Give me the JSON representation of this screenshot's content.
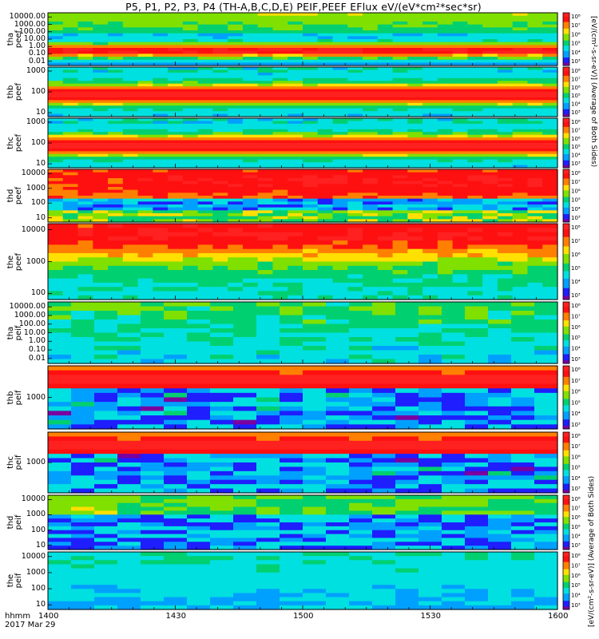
{
  "title": "P5, P1, P2, P3, P4 (TH-A,B,C,D,E) PEIF,PEEF EFlux eV/(eV*cm²*sec*sr)",
  "x_axis": {
    "row_label": "hhmm",
    "date_label": "2017 Mar 29",
    "ticks": [
      "1400",
      "1430",
      "1500",
      "1530",
      "1600"
    ]
  },
  "colorbar": {
    "colors": [
      "#7a00a0",
      "#1e1eff",
      "#00a0ff",
      "#00e0e0",
      "#00d070",
      "#80e000",
      "#ffe000",
      "#ff8000",
      "#ff1010",
      "#ff2020"
    ],
    "units_electron": "[eV/(cm²-s-sr-eV)] (Average of Both Sides)",
    "units_ion": "[eV/(cm²-s-sr-eV)] (Average of Both Sides)"
  },
  "chart_data": {
    "type": "heatmap",
    "title": "P5, P1, P2, P3, P4 (TH-A,B,C,D,E) PEIF,PEEF EFlux eV/(eV*cm²*sec*sr)",
    "x_range": [
      "14:00",
      "16:00"
    ],
    "x_ticks": [
      "1400",
      "1430",
      "1500",
      "1530",
      "1600"
    ],
    "panels": [
      {
        "id": "tha-peef",
        "label": [
          "tha",
          "peef"
        ],
        "y_ticks": [
          "10000.00",
          "1000.00",
          "100.00",
          "10.00",
          "1.00",
          "0.10",
          "0.01"
        ],
        "y_scale": "log",
        "colorbar_ticks": [
          "10⁸",
          "10⁷",
          "10⁶",
          "10⁵",
          "10⁴",
          "10³"
        ],
        "seed": 11,
        "pattern": "tha-e"
      },
      {
        "id": "thb-peef",
        "label": [
          "thb",
          "peef"
        ],
        "y_ticks": [
          "1000",
          "100",
          "10"
        ],
        "y_scale": "log",
        "colorbar_ticks": [
          "10⁸",
          "10⁷",
          "10⁶",
          "10⁵",
          "10⁴",
          "10³"
        ],
        "seed": 23,
        "pattern": "thb-e"
      },
      {
        "id": "thc-peef",
        "label": [
          "thc",
          "peef"
        ],
        "y_ticks": [
          "1000",
          "100",
          "10"
        ],
        "y_scale": "log",
        "colorbar_ticks": [
          "10⁸",
          "10⁷",
          "10⁶",
          "10⁵",
          "10⁴",
          "10³"
        ],
        "seed": 37,
        "pattern": "thc-e"
      },
      {
        "id": "thd-peef",
        "label": [
          "thd",
          "peef"
        ],
        "y_ticks": [
          "10000",
          "1000",
          "100",
          "10"
        ],
        "y_scale": "log",
        "colorbar_ticks": [
          "10⁸",
          "10⁷",
          "10⁶",
          "10⁵",
          "10⁴",
          "10³"
        ],
        "seed": 41,
        "pattern": "thd-e"
      },
      {
        "id": "the-peef",
        "label": [
          "the",
          "peef"
        ],
        "y_ticks": [
          "10000",
          "1000",
          "100"
        ],
        "y_scale": "log",
        "colorbar_ticks": [
          "10⁸",
          "10⁷",
          "10⁶",
          "10⁵",
          "10⁴",
          "10³"
        ],
        "seed": 53,
        "pattern": "the-e"
      },
      {
        "id": "tha-peif",
        "label": [
          "tha",
          "peif"
        ],
        "y_ticks": [
          "10000.00",
          "1000.00",
          "100.00",
          "10.00",
          "1.00",
          "0.10",
          "0.01"
        ],
        "y_scale": "log",
        "colorbar_ticks": [
          "10⁸",
          "10⁷",
          "10⁶",
          "10⁵",
          "10⁴",
          "10³"
        ],
        "seed": 61,
        "pattern": "tha-i"
      },
      {
        "id": "thb-peif",
        "label": [
          "thb",
          "peif"
        ],
        "y_ticks": [
          "1000"
        ],
        "y_scale": "log",
        "colorbar_ticks": [
          "10⁸",
          "10⁷",
          "10⁶",
          "10⁵",
          "10⁴",
          "10³"
        ],
        "seed": 71,
        "pattern": "thb-i"
      },
      {
        "id": "thc-peif",
        "label": [
          "thc",
          "peif"
        ],
        "y_ticks": [
          "1000"
        ],
        "y_scale": "log",
        "colorbar_ticks": [
          "10⁸",
          "10⁷",
          "10⁶",
          "10⁵",
          "10⁴",
          "10³"
        ],
        "seed": 83,
        "pattern": "thc-i"
      },
      {
        "id": "thd-peif",
        "label": [
          "thd",
          "peif"
        ],
        "y_ticks": [
          "10000",
          "1000",
          "100",
          "10"
        ],
        "y_scale": "log",
        "colorbar_ticks": [
          "10⁸",
          "10⁷",
          "10⁶",
          "10⁵",
          "10⁴",
          "10³"
        ],
        "seed": 97,
        "pattern": "thd-i"
      },
      {
        "id": "the-peif",
        "label": [
          "the",
          "peif"
        ],
        "y_ticks": [
          "10000",
          "1000",
          "100",
          "10"
        ],
        "y_scale": "log",
        "colorbar_ticks": [
          "10⁸",
          "10⁷",
          "10⁶",
          "10⁵",
          "10⁴",
          "10³"
        ],
        "seed": 101,
        "pattern": "the-i"
      }
    ]
  }
}
